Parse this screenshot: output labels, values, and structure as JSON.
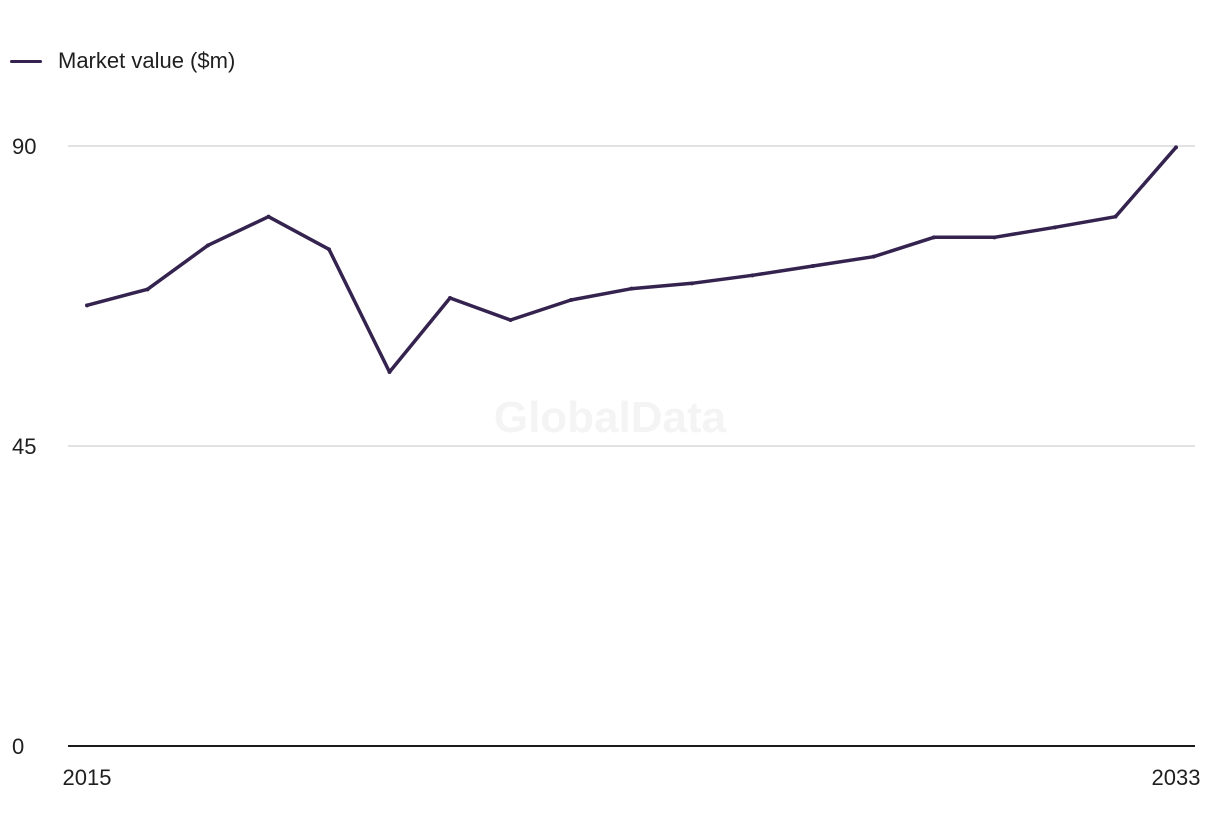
{
  "chart_data": {
    "type": "line",
    "title": "",
    "xlabel": "",
    "ylabel": "",
    "x": [
      2015,
      2016,
      2017,
      2018,
      2019,
      2020,
      2021,
      2022,
      2023,
      2024,
      2025,
      2026,
      2027,
      2028,
      2029,
      2030,
      2031,
      2032,
      2033
    ],
    "series": [
      {
        "name": "Market value ($m)",
        "color": "#35234f",
        "values": [
          66.1,
          68.5,
          75.1,
          79.4,
          74.5,
          56.1,
          67.2,
          63.9,
          66.9,
          68.6,
          69.4,
          70.6,
          72.0,
          73.4,
          76.3,
          76.3,
          77.8,
          79.4,
          89.8
        ]
      }
    ],
    "xlim": [
      2015,
      2033
    ],
    "ylim": [
      0,
      90
    ],
    "x_tick_labels": [
      "2015",
      "2033"
    ],
    "y_tick_labels": [
      "0",
      "45",
      "90"
    ],
    "y_ticks": [
      0,
      45,
      90
    ],
    "grid": true,
    "legend": "top-left",
    "watermark": "GlobalData",
    "colors": {
      "gridline": "#d9d9d9",
      "axis": "#1a1a1a",
      "watermark": "#f4f4f4"
    }
  }
}
